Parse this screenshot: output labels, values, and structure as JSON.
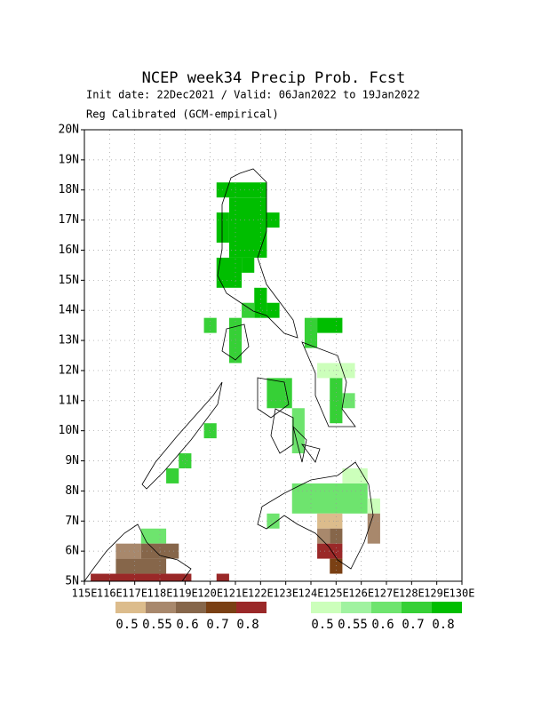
{
  "chart_data": {
    "type": "map",
    "title": "NCEP week34 Precip Prob. Fcst",
    "subtitle": "Init date: 22Dec2021 / Valid: 06Jan2022 to 19Jan2022",
    "note": "Reg Calibrated (GCM-empirical)",
    "xlim": [
      115,
      130
    ],
    "ylim": [
      5,
      20
    ],
    "xticks": [
      {
        "value": 115,
        "label": "115E"
      },
      {
        "value": 116,
        "label": "116E"
      },
      {
        "value": 117,
        "label": "117E"
      },
      {
        "value": 118,
        "label": "118E"
      },
      {
        "value": 119,
        "label": "119E"
      },
      {
        "value": 120,
        "label": "120E"
      },
      {
        "value": 121,
        "label": "121E"
      },
      {
        "value": 122,
        "label": "122E"
      },
      {
        "value": 123,
        "label": "123E"
      },
      {
        "value": 124,
        "label": "124E"
      },
      {
        "value": 125,
        "label": "125E"
      },
      {
        "value": 126,
        "label": "126E"
      },
      {
        "value": 127,
        "label": "127E"
      },
      {
        "value": 128,
        "label": "128E"
      },
      {
        "value": 129,
        "label": "129E"
      },
      {
        "value": 130,
        "label": "130E"
      }
    ],
    "yticks": [
      {
        "value": 5,
        "label": "5N"
      },
      {
        "value": 6,
        "label": "6N"
      },
      {
        "value": 7,
        "label": "7N"
      },
      {
        "value": 8,
        "label": "8N"
      },
      {
        "value": 9,
        "label": "9N"
      },
      {
        "value": 10,
        "label": "10N"
      },
      {
        "value": 11,
        "label": "11N"
      },
      {
        "value": 12,
        "label": "12N"
      },
      {
        "value": 13,
        "label": "13N"
      },
      {
        "value": 14,
        "label": "14N"
      },
      {
        "value": 15,
        "label": "15N"
      },
      {
        "value": 16,
        "label": "16N"
      },
      {
        "value": 17,
        "label": "17N"
      },
      {
        "value": 18,
        "label": "18N"
      },
      {
        "value": 19,
        "label": "19N"
      },
      {
        "value": 20,
        "label": "20N"
      }
    ],
    "grid": true,
    "levels": [
      0.5,
      0.55,
      0.6,
      0.7,
      0.8
    ],
    "dry_colors": [
      "#dcbc8c",
      "#a8886c",
      "#86664a",
      "#7a4014",
      "#9a2828"
    ],
    "wet_colors": [
      "#ccffbb",
      "#a0f2a0",
      "#6ee46e",
      "#36d036",
      "#00be00"
    ],
    "wet_blocks": [
      [
        120.25,
        17.75,
        122.25,
        18.25,
        0.8
      ],
      [
        120.75,
        15.75,
        122.25,
        17.75,
        0.8
      ],
      [
        120.25,
        16.25,
        120.75,
        17.25,
        0.8
      ],
      [
        122.25,
        16.75,
        122.75,
        17.25,
        0.8
      ],
      [
        120.25,
        14.75,
        121.25,
        15.75,
        0.8
      ],
      [
        121.25,
        15.25,
        121.75,
        15.75,
        0.8
      ],
      [
        121.75,
        13.75,
        122.25,
        14.75,
        0.8
      ],
      [
        122.25,
        13.75,
        122.75,
        14.25,
        0.8
      ],
      [
        121.25,
        13.75,
        121.75,
        14.25,
        0.7
      ],
      [
        120.75,
        12.25,
        121.25,
        13.75,
        0.7
      ],
      [
        119.75,
        13.25,
        120.25,
        13.75,
        0.7
      ],
      [
        124.25,
        13.25,
        125.25,
        13.75,
        0.8
      ],
      [
        123.75,
        12.75,
        124.25,
        13.75,
        0.7
      ],
      [
        122.25,
        10.75,
        123.25,
        11.75,
        0.7
      ],
      [
        123.25,
        9.25,
        123.75,
        10.75,
        0.6
      ],
      [
        124.25,
        11.75,
        125.75,
        12.25,
        0.5
      ],
      [
        124.75,
        10.25,
        125.25,
        11.75,
        0.7
      ],
      [
        125.25,
        10.75,
        125.75,
        11.25,
        0.6
      ],
      [
        123.25,
        7.25,
        126.25,
        8.25,
        0.6
      ],
      [
        125.25,
        8.25,
        126.25,
        8.75,
        0.5
      ],
      [
        122.25,
        6.75,
        122.75,
        7.25,
        0.6
      ],
      [
        126.25,
        7.25,
        126.75,
        7.75,
        0.5
      ],
      [
        118.75,
        8.75,
        119.25,
        9.25,
        0.7
      ],
      [
        118.25,
        8.25,
        118.75,
        8.75,
        0.7
      ],
      [
        119.75,
        9.75,
        120.25,
        10.25,
        0.7
      ],
      [
        117.25,
        6.25,
        118.25,
        6.75,
        0.6
      ]
    ],
    "dry_blocks": [
      [
        124.25,
        6.75,
        125.25,
        7.25,
        0.5
      ],
      [
        124.25,
        6.25,
        124.75,
        6.75,
        0.55
      ],
      [
        124.75,
        6.25,
        125.25,
        6.75,
        0.6
      ],
      [
        124.25,
        5.75,
        125.25,
        6.25,
        0.8
      ],
      [
        124.75,
        5.25,
        125.25,
        5.75,
        0.7
      ],
      [
        126.25,
        6.25,
        126.75,
        7.25,
        0.55
      ],
      [
        115.25,
        5.0,
        119.25,
        5.25,
        0.8
      ],
      [
        116.25,
        5.25,
        118.25,
        5.75,
        0.6
      ],
      [
        116.25,
        5.75,
        117.25,
        6.25,
        0.55
      ],
      [
        117.25,
        5.75,
        118.75,
        6.25,
        0.6
      ],
      [
        120.25,
        5.0,
        120.75,
        5.25,
        0.8
      ]
    ]
  }
}
